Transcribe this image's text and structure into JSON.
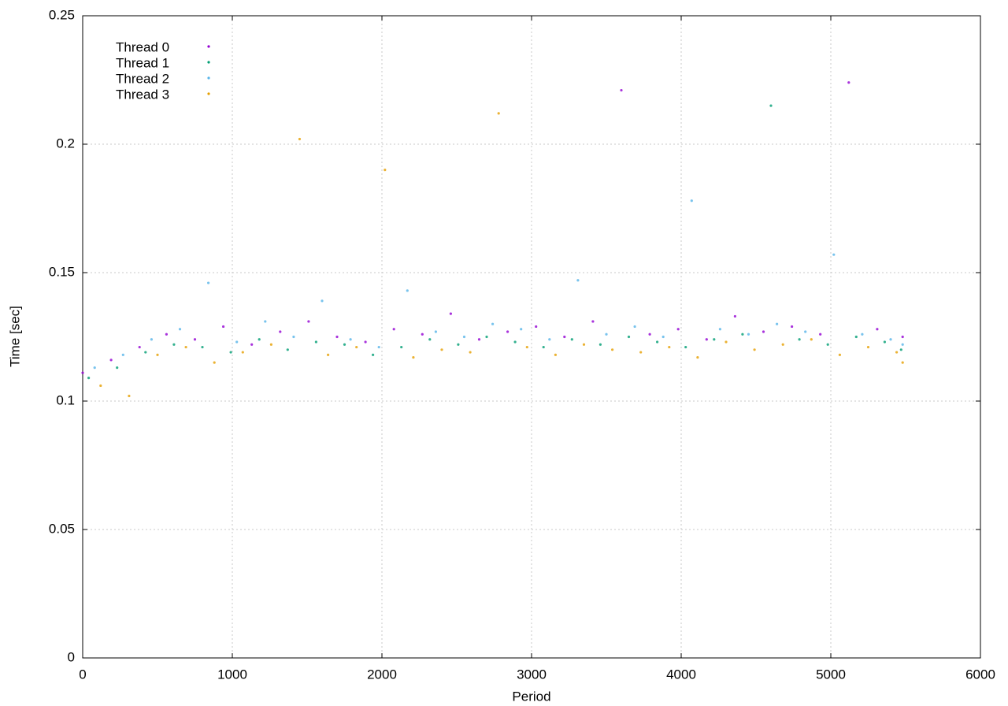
{
  "chart_data": {
    "type": "scatter",
    "xlabel": "Period",
    "ylabel": "Time [sec]",
    "xlim": [
      0,
      6000
    ],
    "xticks": [
      0,
      1000,
      2000,
      3000,
      4000,
      5000,
      6000
    ],
    "ylim": [
      0,
      0.25
    ],
    "yticks": [
      0,
      0.05,
      0.1,
      0.15,
      0.2,
      0.25
    ],
    "grid": true,
    "legend": "top-left",
    "series": [
      {
        "name": "Thread 0",
        "color": "#9400d3",
        "x": [
          0,
          190,
          380,
          560,
          750,
          940,
          1130,
          1320,
          1510,
          1700,
          1890,
          2080,
          2270,
          2460,
          2650,
          2840,
          3030,
          3220,
          3410,
          3600,
          3790,
          3980,
          4170,
          4360,
          4550,
          4740,
          4930,
          5120,
          5310,
          5480
        ],
        "values": [
          0.111,
          0.116,
          0.121,
          0.126,
          0.124,
          0.129,
          0.122,
          0.127,
          0.131,
          0.125,
          0.123,
          0.128,
          0.126,
          0.134,
          0.124,
          0.127,
          0.129,
          0.125,
          0.131,
          0.221,
          0.126,
          0.128,
          0.124,
          0.133,
          0.127,
          0.129,
          0.126,
          0.224,
          0.128,
          0.125
        ]
      },
      {
        "name": "Thread 1",
        "color": "#009e73",
        "x": [
          40,
          230,
          420,
          610,
          800,
          990,
          1180,
          1370,
          1560,
          1750,
          1940,
          2130,
          2320,
          2510,
          2700,
          2890,
          3080,
          3270,
          3460,
          3650,
          3840,
          4030,
          4220,
          4410,
          4600,
          4790,
          4980,
          5170,
          5360,
          5470
        ],
        "values": [
          0.109,
          0.113,
          0.119,
          0.122,
          0.121,
          0.119,
          0.124,
          0.12,
          0.123,
          0.122,
          0.118,
          0.121,
          0.124,
          0.122,
          0.125,
          0.123,
          0.121,
          0.124,
          0.122,
          0.125,
          0.123,
          0.121,
          0.124,
          0.126,
          0.215,
          0.124,
          0.122,
          0.125,
          0.123,
          0.12
        ]
      },
      {
        "name": "Thread 2",
        "color": "#56b4e9",
        "x": [
          80,
          270,
          460,
          650,
          840,
          1030,
          1220,
          1410,
          1600,
          1790,
          1980,
          2170,
          2360,
          2550,
          2740,
          2930,
          3120,
          3310,
          3500,
          3690,
          3880,
          4070,
          4260,
          4450,
          4640,
          4830,
          5020,
          5210,
          5400,
          5480
        ],
        "values": [
          0.113,
          0.118,
          0.124,
          0.128,
          0.146,
          0.123,
          0.131,
          0.125,
          0.139,
          0.124,
          0.121,
          0.143,
          0.127,
          0.125,
          0.13,
          0.128,
          0.124,
          0.147,
          0.126,
          0.129,
          0.125,
          0.178,
          0.128,
          0.126,
          0.13,
          0.127,
          0.157,
          0.126,
          0.124,
          0.122
        ]
      },
      {
        "name": "Thread 3",
        "color": "#e69f00",
        "x": [
          120,
          310,
          500,
          690,
          880,
          1070,
          1260,
          1450,
          1640,
          1830,
          2020,
          2210,
          2400,
          2590,
          2780,
          2970,
          3160,
          3350,
          3540,
          3730,
          3920,
          4110,
          4300,
          4490,
          4680,
          4870,
          5060,
          5250,
          5440,
          5480
        ],
        "values": [
          0.106,
          0.102,
          0.118,
          0.121,
          0.115,
          0.119,
          0.122,
          0.202,
          0.118,
          0.121,
          0.19,
          0.117,
          0.12,
          0.119,
          0.212,
          0.121,
          0.118,
          0.122,
          0.12,
          0.119,
          0.121,
          0.117,
          0.123,
          0.12,
          0.122,
          0.124,
          0.118,
          0.121,
          0.119,
          0.115
        ]
      }
    ]
  }
}
